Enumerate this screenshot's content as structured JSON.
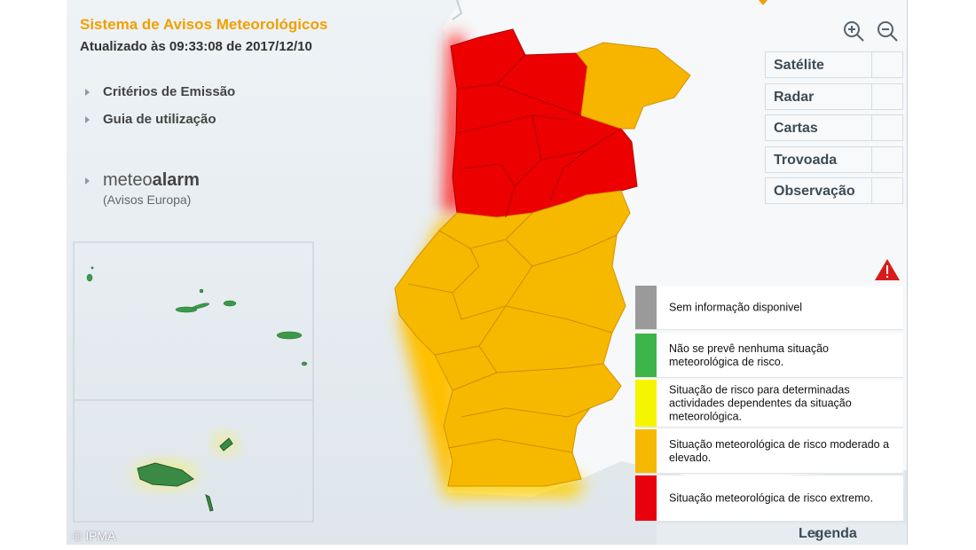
{
  "header": {
    "title": "Sistema de Avisos Meteorológicos",
    "updated": "Atualizado às 09:33:08 de 2017/12/10"
  },
  "links": [
    "Critérios de Emissão",
    "Guia de utilização"
  ],
  "meteoalarm": {
    "prefix": "meteo",
    "brand": "alarm",
    "caption": "(Avisos Europa)"
  },
  "layers": [
    "Satélite",
    "Radar",
    "Cartas",
    "Trovoada",
    "Observação"
  ],
  "legend": {
    "title": "Legenda",
    "items": [
      {
        "color": "#9a9a9a",
        "label": "Sem informação disponivel"
      },
      {
        "color": "#3cb44a",
        "label": "Não se prevê nenhuma situação meteorológica de risco."
      },
      {
        "color": "#f5f500",
        "label": "Situação de risco para determinadas actividades dependentes da situação meteorológica."
      },
      {
        "color": "#f6b800",
        "label": "Situação meteorológica de risco moderado a elevado."
      },
      {
        "color": "#e8000d",
        "label": "Situação meteorológica de risco extremo."
      }
    ]
  },
  "copyright": "© IPMA"
}
